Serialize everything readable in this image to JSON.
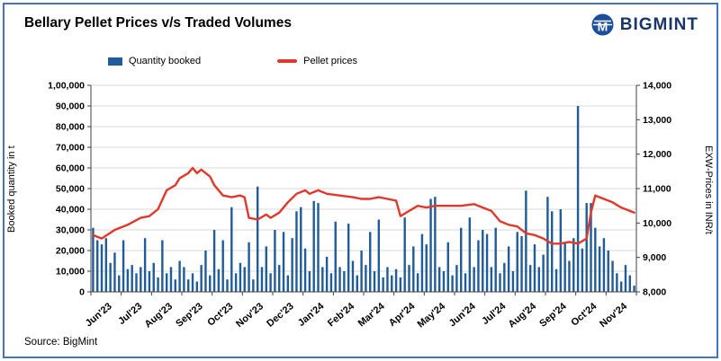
{
  "header": {
    "title": "Bellary Pellet Prices v/s Traded Volumes"
  },
  "brand": {
    "name": "BIGMINT",
    "color": "#1a3668"
  },
  "legend": {
    "items": [
      {
        "label": "Quantity booked",
        "color": "#1f5c99"
      },
      {
        "label": "Pellet prices",
        "color": "#e2372b"
      }
    ]
  },
  "axes": {
    "left_label": "Booked quantity in t",
    "right_label": "EXW-Prices in INR/t",
    "left_ticks": [
      "0",
      "10,000",
      "20,000",
      "30,000",
      "40,000",
      "50,000",
      "60,000",
      "70,000",
      "80,000",
      "90,000",
      "1,00,000"
    ],
    "right_ticks": [
      "8,000",
      "9,000",
      "10,000",
      "11,000",
      "12,000",
      "13,000",
      "14,000"
    ]
  },
  "footer": {
    "source": "Source: BigMint"
  },
  "chart_data": {
    "type": "bar+line",
    "title": "Bellary Pellet Prices v/s Traded Volumes",
    "months": [
      "Jun'23",
      "Jul'23",
      "Aug'23",
      "Sep'23",
      "Oct'23",
      "Nov'23",
      "Dec'23",
      "Jan'24",
      "Feb'24",
      "Mar'24",
      "Apr'24",
      "May'24",
      "Jun'24",
      "Jul'24",
      "Aug'24",
      "Sep'24",
      "Oct'24",
      "Nov'24"
    ],
    "points_per_month": 7,
    "grid": true,
    "legend_position": "top",
    "bars": {
      "name": "Quantity booked",
      "unit": "t",
      "ylim": [
        0,
        100000
      ],
      "values": [
        31000,
        25000,
        23000,
        26000,
        14000,
        19000,
        8000,
        25000,
        11000,
        13000,
        9000,
        12000,
        26000,
        10000,
        14000,
        7000,
        25000,
        9000,
        12000,
        6000,
        15000,
        12000,
        6000,
        9000,
        5000,
        13000,
        20000,
        8000,
        30000,
        11000,
        25000,
        6000,
        41000,
        9000,
        14000,
        12000,
        24000,
        6000,
        51000,
        12000,
        22000,
        9000,
        30000,
        13000,
        29000,
        8000,
        26000,
        39000,
        41000,
        21000,
        10000,
        44000,
        43000,
        12000,
        17000,
        9000,
        34000,
        12000,
        10000,
        33000,
        15000,
        8000,
        20000,
        13000,
        29000,
        10000,
        35000,
        7000,
        12000,
        8000,
        11000,
        7000,
        36000,
        13000,
        22000,
        9000,
        28000,
        23000,
        45000,
        46000,
        12000,
        10000,
        24000,
        8000,
        13000,
        31000,
        9000,
        36000,
        12000,
        25000,
        30000,
        28000,
        12000,
        31000,
        9000,
        14000,
        22000,
        10000,
        29000,
        27000,
        49000,
        13000,
        23000,
        12000,
        18000,
        46000,
        39000,
        11000,
        40000,
        24000,
        15000,
        26000,
        90000,
        21000,
        43000,
        43000,
        31000,
        22000,
        26000,
        20000,
        15000,
        9000,
        5000,
        13000,
        8000,
        3000
      ]
    },
    "line": {
      "name": "Pellet prices",
      "unit": "INR/t",
      "ylim": [
        8000,
        14000
      ],
      "anchors": [
        [
          0,
          9650
        ],
        [
          2,
          9550
        ],
        [
          5,
          9800
        ],
        [
          8,
          9950
        ],
        [
          11,
          10150
        ],
        [
          13,
          10200
        ],
        [
          15,
          10400
        ],
        [
          17,
          10950
        ],
        [
          19,
          11100
        ],
        [
          20,
          11300
        ],
        [
          22,
          11450
        ],
        [
          23,
          11600
        ],
        [
          24,
          11450
        ],
        [
          25,
          11550
        ],
        [
          27,
          11350
        ],
        [
          28,
          11100
        ],
        [
          30,
          10800
        ],
        [
          32,
          10750
        ],
        [
          34,
          10800
        ],
        [
          35,
          10750
        ],
        [
          36,
          10150
        ],
        [
          38,
          10100
        ],
        [
          40,
          10250
        ],
        [
          41,
          10150
        ],
        [
          43,
          10300
        ],
        [
          45,
          10600
        ],
        [
          47,
          10850
        ],
        [
          49,
          10950
        ],
        [
          50,
          10850
        ],
        [
          52,
          10950
        ],
        [
          54,
          10850
        ],
        [
          57,
          10800
        ],
        [
          60,
          10750
        ],
        [
          62,
          10700
        ],
        [
          64,
          10700
        ],
        [
          66,
          10750
        ],
        [
          68,
          10700
        ],
        [
          70,
          10650
        ],
        [
          71,
          10200
        ],
        [
          73,
          10350
        ],
        [
          75,
          10500
        ],
        [
          77,
          10450
        ],
        [
          79,
          10500
        ],
        [
          82,
          10500
        ],
        [
          85,
          10500
        ],
        [
          88,
          10550
        ],
        [
          90,
          10450
        ],
        [
          92,
          10350
        ],
        [
          94,
          10050
        ],
        [
          96,
          9950
        ],
        [
          98,
          9900
        ],
        [
          100,
          9700
        ],
        [
          102,
          9650
        ],
        [
          104,
          9550
        ],
        [
          106,
          9400
        ],
        [
          108,
          9400
        ],
        [
          110,
          9450
        ],
        [
          112,
          9400
        ],
        [
          114,
          9550
        ],
        [
          115,
          10300
        ],
        [
          116,
          10800
        ],
        [
          117,
          10750
        ],
        [
          120,
          10600
        ],
        [
          122,
          10450
        ],
        [
          124,
          10350
        ],
        [
          125,
          10300
        ]
      ]
    },
    "colors": {
      "bar": "#1f5c99",
      "line": "#e2372b",
      "grid": "#d9d9d9",
      "axis": "#404040"
    }
  }
}
